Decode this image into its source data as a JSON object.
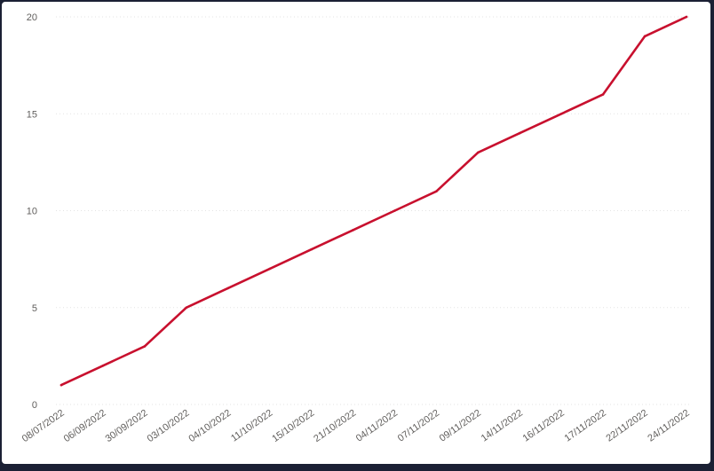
{
  "chart_data": {
    "type": "line",
    "title": "",
    "xlabel": "",
    "ylabel": "",
    "x": [
      "08/07/2022",
      "06/09/2022",
      "30/09/2022",
      "03/10/2022",
      "04/10/2022",
      "11/10/2022",
      "15/10/2022",
      "21/10/2022",
      "04/11/2022",
      "07/11/2022",
      "09/11/2022",
      "14/11/2022",
      "16/11/2022",
      "17/11/2022",
      "22/11/2022",
      "24/11/2022"
    ],
    "series": [
      {
        "values": [
          1,
          2,
          3,
          5,
          6,
          7,
          8,
          9,
          10,
          11,
          13,
          14,
          15,
          16,
          19,
          20
        ],
        "color": "#c8102e"
      }
    ],
    "ylim": [
      0,
      20
    ],
    "yticks": [
      "0",
      "5",
      "10",
      "15",
      "20"
    ],
    "grid": true,
    "legend": "none"
  }
}
